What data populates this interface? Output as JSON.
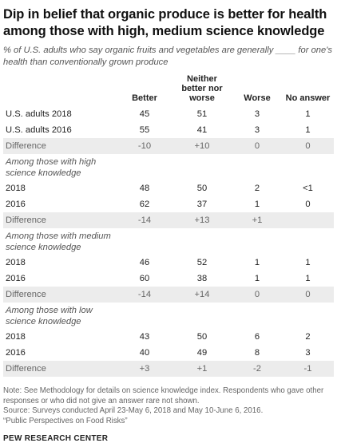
{
  "title": "Dip in belief that organic produce is better for health among those with high, medium science knowledge",
  "subtitle": "% of U.S. adults who say organic fruits and vegetables are generally ____ for one's health than conventionally grown produce",
  "columns": [
    "Better",
    "Neither better nor worse",
    "Worse",
    "No answer"
  ],
  "rows": [
    {
      "kind": "data",
      "label": "U.S. adults 2018",
      "values": [
        "45",
        "51",
        "3",
        "1"
      ]
    },
    {
      "kind": "data",
      "label": "U.S. adults 2016",
      "values": [
        "55",
        "41",
        "3",
        "1"
      ]
    },
    {
      "kind": "diff",
      "label": "Difference",
      "values": [
        "-10",
        "+10",
        "0",
        "0"
      ]
    },
    {
      "kind": "section",
      "label": "Among those with high science knowledge"
    },
    {
      "kind": "data",
      "label": "2018",
      "values": [
        "48",
        "50",
        "2",
        "<1"
      ]
    },
    {
      "kind": "data",
      "label": "2016",
      "values": [
        "62",
        "37",
        "1",
        "0"
      ]
    },
    {
      "kind": "diff",
      "label": "Difference",
      "values": [
        "-14",
        "+13",
        "+1",
        ""
      ]
    },
    {
      "kind": "section",
      "label": "Among those with medium science knowledge"
    },
    {
      "kind": "data",
      "label": "2018",
      "values": [
        "46",
        "52",
        "1",
        "1"
      ]
    },
    {
      "kind": "data",
      "label": "2016",
      "values": [
        "60",
        "38",
        "1",
        "1"
      ]
    },
    {
      "kind": "diff",
      "label": "Difference",
      "values": [
        "-14",
        "+14",
        "0",
        "0"
      ]
    },
    {
      "kind": "section",
      "label": "Among those with low science knowledge"
    },
    {
      "kind": "data",
      "label": "2018",
      "values": [
        "43",
        "50",
        "6",
        "2"
      ]
    },
    {
      "kind": "data",
      "label": "2016",
      "values": [
        "40",
        "49",
        "8",
        "3"
      ]
    },
    {
      "kind": "diff",
      "label": "Difference",
      "values": [
        "+3",
        "+1",
        "-2",
        "-1"
      ]
    }
  ],
  "note": "Note: See Methodology for details on science knowledge index. Respondents who gave other responses or who did not give an answer rare not shown.",
  "source": "Source: Surveys conducted April 23-May 6, 2018 and May 10-June 6, 2016.",
  "report": "“Public Perspectives on Food Risks”",
  "credit": "PEW RESEARCH CENTER",
  "chart_data": {
    "type": "table",
    "title": "Dip in belief that organic produce is better for health among those with high, medium science knowledge",
    "columns": [
      "Better",
      "Neither better nor worse",
      "Worse",
      "No answer"
    ],
    "groups": [
      {
        "group": "U.S. adults",
        "rows": [
          {
            "label": "2018",
            "values": [
              "45",
              "51",
              "3",
              "1"
            ]
          },
          {
            "label": "2016",
            "values": [
              "55",
              "41",
              "3",
              "1"
            ]
          },
          {
            "label": "Difference",
            "values": [
              "-10",
              "+10",
              "0",
              "0"
            ]
          }
        ]
      },
      {
        "group": "Among those with high science knowledge",
        "rows": [
          {
            "label": "2018",
            "values": [
              "48",
              "50",
              "2",
              "<1"
            ]
          },
          {
            "label": "2016",
            "values": [
              "62",
              "37",
              "1",
              "0"
            ]
          },
          {
            "label": "Difference",
            "values": [
              "-14",
              "+13",
              "+1",
              ""
            ]
          }
        ]
      },
      {
        "group": "Among those with medium science knowledge",
        "rows": [
          {
            "label": "2018",
            "values": [
              "46",
              "52",
              "1",
              "1"
            ]
          },
          {
            "label": "2016",
            "values": [
              "60",
              "38",
              "1",
              "1"
            ]
          },
          {
            "label": "Difference",
            "values": [
              "-14",
              "+14",
              "0",
              "0"
            ]
          }
        ]
      },
      {
        "group": "Among those with low science knowledge",
        "rows": [
          {
            "label": "2018",
            "values": [
              "43",
              "50",
              "6",
              "2"
            ]
          },
          {
            "label": "2016",
            "values": [
              "40",
              "49",
              "8",
              "3"
            ]
          },
          {
            "label": "Difference",
            "values": [
              "+3",
              "+1",
              "-2",
              "-1"
            ]
          }
        ]
      }
    ]
  }
}
